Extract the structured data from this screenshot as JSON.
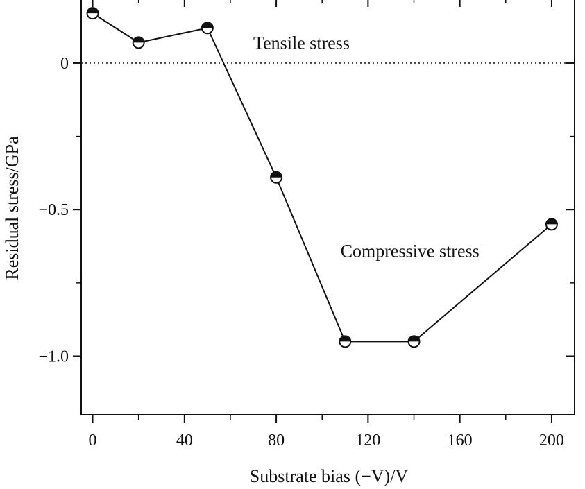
{
  "chart_data": {
    "type": "line",
    "title": "",
    "xlabel": "Substrate bias (−V)/V",
    "ylabel": "Residual stress/GPa",
    "xlim": [
      -5,
      210
    ],
    "ylim": [
      -1.2,
      0.22
    ],
    "x_ticks": [
      0,
      40,
      80,
      120,
      160,
      200
    ],
    "x_tick_labels": [
      "0",
      "40",
      "80",
      "120",
      "160",
      "200"
    ],
    "y_ticks": [
      0,
      -0.5,
      -1.0
    ],
    "y_tick_labels": [
      "0",
      "−0.5",
      "−1.0"
    ],
    "grid": false,
    "reference_line": {
      "y": 0,
      "style": "dotted"
    },
    "series": [
      {
        "marker": "half-filled-circle",
        "x": [
          0,
          20,
          50,
          80,
          110,
          140,
          200
        ],
        "y": [
          0.17,
          0.07,
          0.12,
          -0.39,
          -0.95,
          -0.95,
          -0.55
        ]
      }
    ],
    "annotations": [
      {
        "text": "Tensile stress",
        "x": 70,
        "y": 0.07
      },
      {
        "text": "Compressive stress",
        "x": 108,
        "y": -0.64
      }
    ],
    "line_color": "#111111"
  }
}
